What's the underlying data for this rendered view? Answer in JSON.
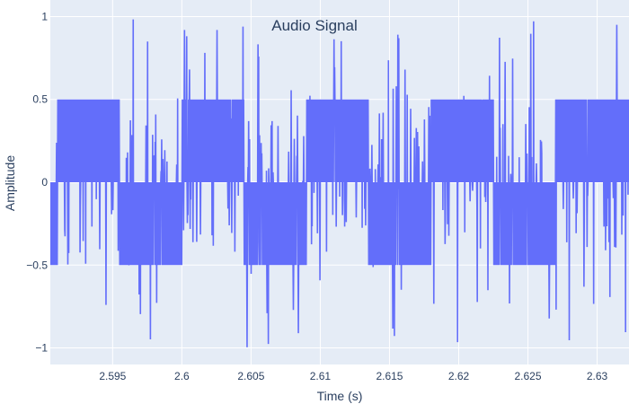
{
  "chart_data": {
    "type": "line",
    "title": "Audio Signal",
    "xlabel": "Time (s)",
    "ylabel": "Amplitude",
    "xlim": [
      2.5905,
      2.6323
    ],
    "ylim": [
      -1.1,
      1.1
    ],
    "x_ticks": [
      2.595,
      2.6,
      2.605,
      2.61,
      2.615,
      2.62,
      2.625,
      2.63
    ],
    "x_tick_labels": [
      "2.595",
      "2.6",
      "2.605",
      "2.61",
      "2.615",
      "2.62",
      "2.625",
      "2.63"
    ],
    "y_ticks": [
      -1,
      -0.5,
      0,
      0.5,
      1
    ],
    "y_tick_labels": [
      "−1",
      "−0.5",
      "0",
      "0.5",
      "1"
    ],
    "grid": true,
    "legend": "none",
    "colors": {
      "line": "#636efa",
      "plot_bg": "#e5ecf6",
      "grid": "#ffffff",
      "text": "#2a3f5f"
    },
    "series": [
      {
        "description": "Square wave of amplitude 0.5 (period about 0.009 s) with dense high-frequency content and random spikes up to ±1",
        "square_amplitude": 0.5,
        "square_segments": [
          {
            "x0": 2.5905,
            "x1": 2.591,
            "level": -0.5
          },
          {
            "x0": 2.591,
            "x1": 2.5955,
            "level": 0.5
          },
          {
            "x0": 2.5955,
            "x1": 2.6,
            "level": -0.5
          },
          {
            "x0": 2.6,
            "x1": 2.6045,
            "level": 0.5
          },
          {
            "x0": 2.6045,
            "x1": 2.609,
            "level": -0.5
          },
          {
            "x0": 2.609,
            "x1": 2.6135,
            "level": 0.5
          },
          {
            "x0": 2.6135,
            "x1": 2.618,
            "level": -0.5
          },
          {
            "x0": 2.618,
            "x1": 2.6225,
            "level": 0.5
          },
          {
            "x0": 2.6225,
            "x1": 2.627,
            "level": -0.5
          },
          {
            "x0": 2.627,
            "x1": 2.6323,
            "level": 0.5
          }
        ],
        "spike_range": [
          -1.0,
          1.0
        ]
      }
    ]
  }
}
